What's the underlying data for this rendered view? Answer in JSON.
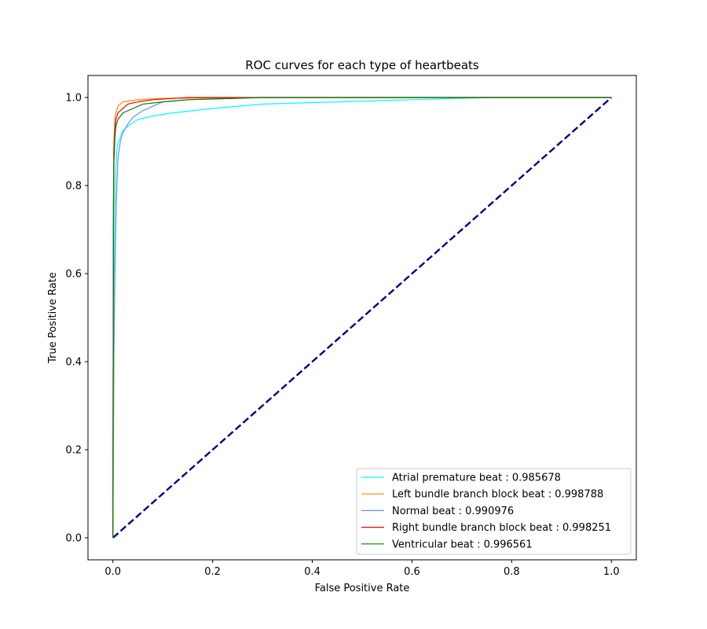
{
  "chart_data": {
    "type": "line",
    "title": "ROC curves for each type of heartbeats",
    "xlabel": "False Positive Rate",
    "ylabel": "True Positive Rate",
    "xlim": [
      -0.05,
      1.05
    ],
    "ylim": [
      -0.05,
      1.05
    ],
    "xticks": [
      "0.0",
      "0.2",
      "0.4",
      "0.6",
      "0.8",
      "1.0"
    ],
    "yticks": [
      "0.0",
      "0.2",
      "0.4",
      "0.6",
      "0.8",
      "1.0"
    ],
    "legend_position": "lower-right",
    "grid": false,
    "series": [
      {
        "name": "Atrial premature beat : 0.985678",
        "color": "#00ffff",
        "x": [
          0,
          0.002,
          0.004,
          0.006,
          0.008,
          0.01,
          0.015,
          0.02,
          0.03,
          0.05,
          0.08,
          0.12,
          0.2,
          0.3,
          0.45,
          0.6,
          0.76,
          1.0
        ],
        "y": [
          0,
          0.55,
          0.75,
          0.84,
          0.88,
          0.895,
          0.91,
          0.925,
          0.935,
          0.95,
          0.958,
          0.965,
          0.975,
          0.985,
          0.99,
          0.995,
          1.0,
          1.0
        ]
      },
      {
        "name": "Left bundle branch block beat : 0.998788",
        "color": "#ff8c00",
        "x": [
          0,
          0.001,
          0.002,
          0.004,
          0.006,
          0.01,
          0.015,
          0.02,
          0.05,
          0.1,
          0.3,
          1.0
        ],
        "y": [
          0,
          0.8,
          0.9,
          0.95,
          0.965,
          0.98,
          0.985,
          0.99,
          0.995,
          0.998,
          1.0,
          1.0
        ]
      },
      {
        "name": "Normal beat : 0.990976",
        "color": "#6495ed",
        "x": [
          0,
          0.002,
          0.004,
          0.006,
          0.008,
          0.01,
          0.015,
          0.02,
          0.03,
          0.04,
          0.06,
          0.08,
          0.1,
          0.15,
          0.3,
          1.0
        ],
        "y": [
          0,
          0.4,
          0.6,
          0.72,
          0.8,
          0.86,
          0.9,
          0.92,
          0.94,
          0.955,
          0.97,
          0.98,
          0.99,
          0.995,
          1.0,
          1.0
        ]
      },
      {
        "name": "Right bundle branch block beat : 0.998251",
        "color": "#ff0000",
        "x": [
          0,
          0.001,
          0.002,
          0.004,
          0.006,
          0.01,
          0.02,
          0.03,
          0.05,
          0.08,
          0.15,
          1.0
        ],
        "y": [
          0,
          0.75,
          0.88,
          0.93,
          0.95,
          0.965,
          0.975,
          0.985,
          0.99,
          0.995,
          1.0,
          1.0
        ]
      },
      {
        "name": "Ventricular beat : 0.996561",
        "color": "#008000",
        "x": [
          0,
          0.001,
          0.002,
          0.004,
          0.006,
          0.01,
          0.02,
          0.04,
          0.06,
          0.1,
          0.15,
          0.3,
          1.0
        ],
        "y": [
          0,
          0.7,
          0.85,
          0.91,
          0.935,
          0.95,
          0.965,
          0.975,
          0.985,
          0.99,
          0.995,
          1.0,
          1.0
        ]
      }
    ],
    "reference_line": {
      "color": "#000080",
      "x": [
        0,
        1
      ],
      "y": [
        0,
        1
      ]
    }
  }
}
